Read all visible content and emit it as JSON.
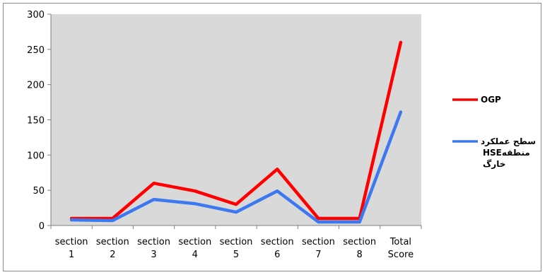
{
  "chart_data": {
    "type": "line",
    "categories": [
      [
        "section",
        "1"
      ],
      [
        "section",
        "2"
      ],
      [
        "section",
        "3"
      ],
      [
        "section",
        "4"
      ],
      [
        "section",
        "5"
      ],
      [
        "section",
        "6"
      ],
      [
        "section",
        "7"
      ],
      [
        "section",
        "8"
      ],
      [
        "Total",
        "Score"
      ]
    ],
    "series": [
      {
        "name": "OGP",
        "color": "#ff0000",
        "values": [
          10,
          10,
          60,
          49,
          30,
          80,
          10,
          10,
          260
        ]
      },
      {
        "name_lines": [
          "سطح عملکرد",
          "HSEمنطقه",
          "خارگ"
        ],
        "color": "#3c78f0",
        "values": [
          8,
          7,
          37,
          31,
          19,
          49,
          5,
          5,
          161
        ]
      }
    ],
    "ylim": [
      0,
      300
    ],
    "yticks": [
      0,
      50,
      100,
      150,
      200,
      250,
      300
    ],
    "grid": false,
    "plot_background": "#d9d9d9",
    "legend_position": "right"
  }
}
